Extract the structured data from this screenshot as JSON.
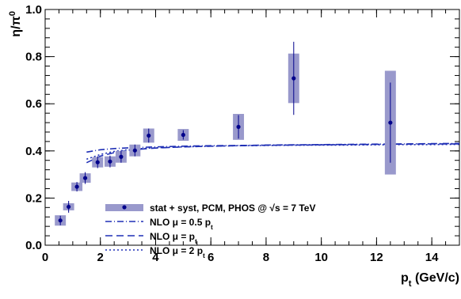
{
  "chart_data": {
    "type": "scatter",
    "title": "",
    "xlabel": "p_t (GeV/c)",
    "ylabel": "η/π^0",
    "xlim": [
      0,
      15
    ],
    "ylim": [
      0,
      1.0
    ],
    "x_ticks": [
      0,
      2,
      4,
      6,
      8,
      10,
      12,
      14
    ],
    "x_tick_labels": [
      "0",
      "2",
      "4",
      "6",
      "8",
      "10",
      "12",
      "14"
    ],
    "y_ticks": [
      0.0,
      0.2,
      0.4,
      0.6,
      0.8,
      1.0
    ],
    "y_tick_labels": [
      "0.0",
      "0.2",
      "0.4",
      "0.6",
      "0.8",
      "1.0"
    ],
    "grid": false,
    "legend_position": "center",
    "legend": [
      {
        "label": "stat + syst, PCM, PHOS @ √s = 7 TeV",
        "symbol": "box-marker"
      },
      {
        "label": "NLO μ = 0.5 p_t",
        "symbol": "dash-dot"
      },
      {
        "label": "NLO μ = p_t",
        "symbol": "dashed"
      },
      {
        "label": "NLO μ = 2 p_t",
        "symbol": "dotted"
      }
    ],
    "colors": {
      "band": "#9999cc",
      "marker": "#00008b",
      "curve": "#1f2fb5"
    },
    "series": [
      {
        "name": "stat + syst, PCM, PHOS @ √s = 7 TeV",
        "kind": "points",
        "points": [
          {
            "x": 0.55,
            "y": 0.105,
            "stat": 0.02,
            "syst": 0.022,
            "xw": 0.2
          },
          {
            "x": 0.85,
            "y": 0.163,
            "stat": 0.025,
            "syst": 0.015,
            "xw": 0.2
          },
          {
            "x": 1.15,
            "y": 0.248,
            "stat": 0.02,
            "syst": 0.018,
            "xw": 0.2
          },
          {
            "x": 1.45,
            "y": 0.285,
            "stat": 0.025,
            "syst": 0.02,
            "xw": 0.2
          },
          {
            "x": 1.9,
            "y": 0.352,
            "stat": 0.025,
            "syst": 0.022,
            "xw": 0.2
          },
          {
            "x": 2.35,
            "y": 0.355,
            "stat": 0.025,
            "syst": 0.022,
            "xw": 0.2
          },
          {
            "x": 2.75,
            "y": 0.375,
            "stat": 0.025,
            "syst": 0.025,
            "xw": 0.2
          },
          {
            "x": 3.25,
            "y": 0.402,
            "stat": 0.025,
            "syst": 0.025,
            "xw": 0.2
          },
          {
            "x": 3.75,
            "y": 0.465,
            "stat": 0.03,
            "syst": 0.03,
            "xw": 0.2
          },
          {
            "x": 5.0,
            "y": 0.468,
            "stat": 0.02,
            "syst": 0.025,
            "xw": 0.2
          },
          {
            "x": 7.0,
            "y": 0.502,
            "stat": 0.05,
            "syst": 0.055,
            "xw": 0.2
          },
          {
            "x": 9.0,
            "y": 0.708,
            "stat": 0.155,
            "syst": 0.105,
            "xw": 0.2
          },
          {
            "x": 12.5,
            "y": 0.52,
            "stat": 0.17,
            "syst": 0.22,
            "xw": 0.2
          }
        ]
      },
      {
        "name": "NLO μ = 0.5 p_t",
        "kind": "curve",
        "style": "dash-dot",
        "x": [
          1.5,
          2.0,
          2.5,
          3.0,
          3.5,
          4.0,
          5.0,
          6.0,
          7.0,
          8.0,
          9.0,
          10.0,
          11.0,
          12.0,
          13.0,
          14.0,
          15.0
        ],
        "y": [
          0.395,
          0.405,
          0.41,
          0.413,
          0.415,
          0.417,
          0.42,
          0.422,
          0.423,
          0.425,
          0.426,
          0.427,
          0.428,
          0.429,
          0.43,
          0.431,
          0.432
        ]
      },
      {
        "name": "NLO μ = p_t",
        "kind": "curve",
        "style": "dashed",
        "x": [
          1.5,
          2.0,
          2.5,
          3.0,
          3.5,
          4.0,
          5.0,
          6.0,
          7.0,
          8.0,
          9.0,
          10.0,
          11.0,
          12.0,
          13.0,
          14.0,
          15.0
        ],
        "y": [
          0.35,
          0.378,
          0.393,
          0.402,
          0.408,
          0.412,
          0.417,
          0.42,
          0.422,
          0.424,
          0.425,
          0.426,
          0.427,
          0.428,
          0.429,
          0.43,
          0.43
        ]
      },
      {
        "name": "NLO μ = 2 p_t",
        "kind": "curve",
        "style": "dotted",
        "x": [
          1.5,
          2.0,
          2.5,
          3.0,
          3.5,
          4.0,
          5.0,
          6.0,
          7.0,
          8.0,
          9.0,
          10.0,
          11.0,
          12.0,
          13.0,
          14.0,
          15.0
        ],
        "y": [
          0.365,
          0.385,
          0.398,
          0.405,
          0.41,
          0.413,
          0.417,
          0.42,
          0.422,
          0.423,
          0.424,
          0.425,
          0.425,
          0.426,
          0.427,
          0.427,
          0.428
        ]
      }
    ]
  }
}
